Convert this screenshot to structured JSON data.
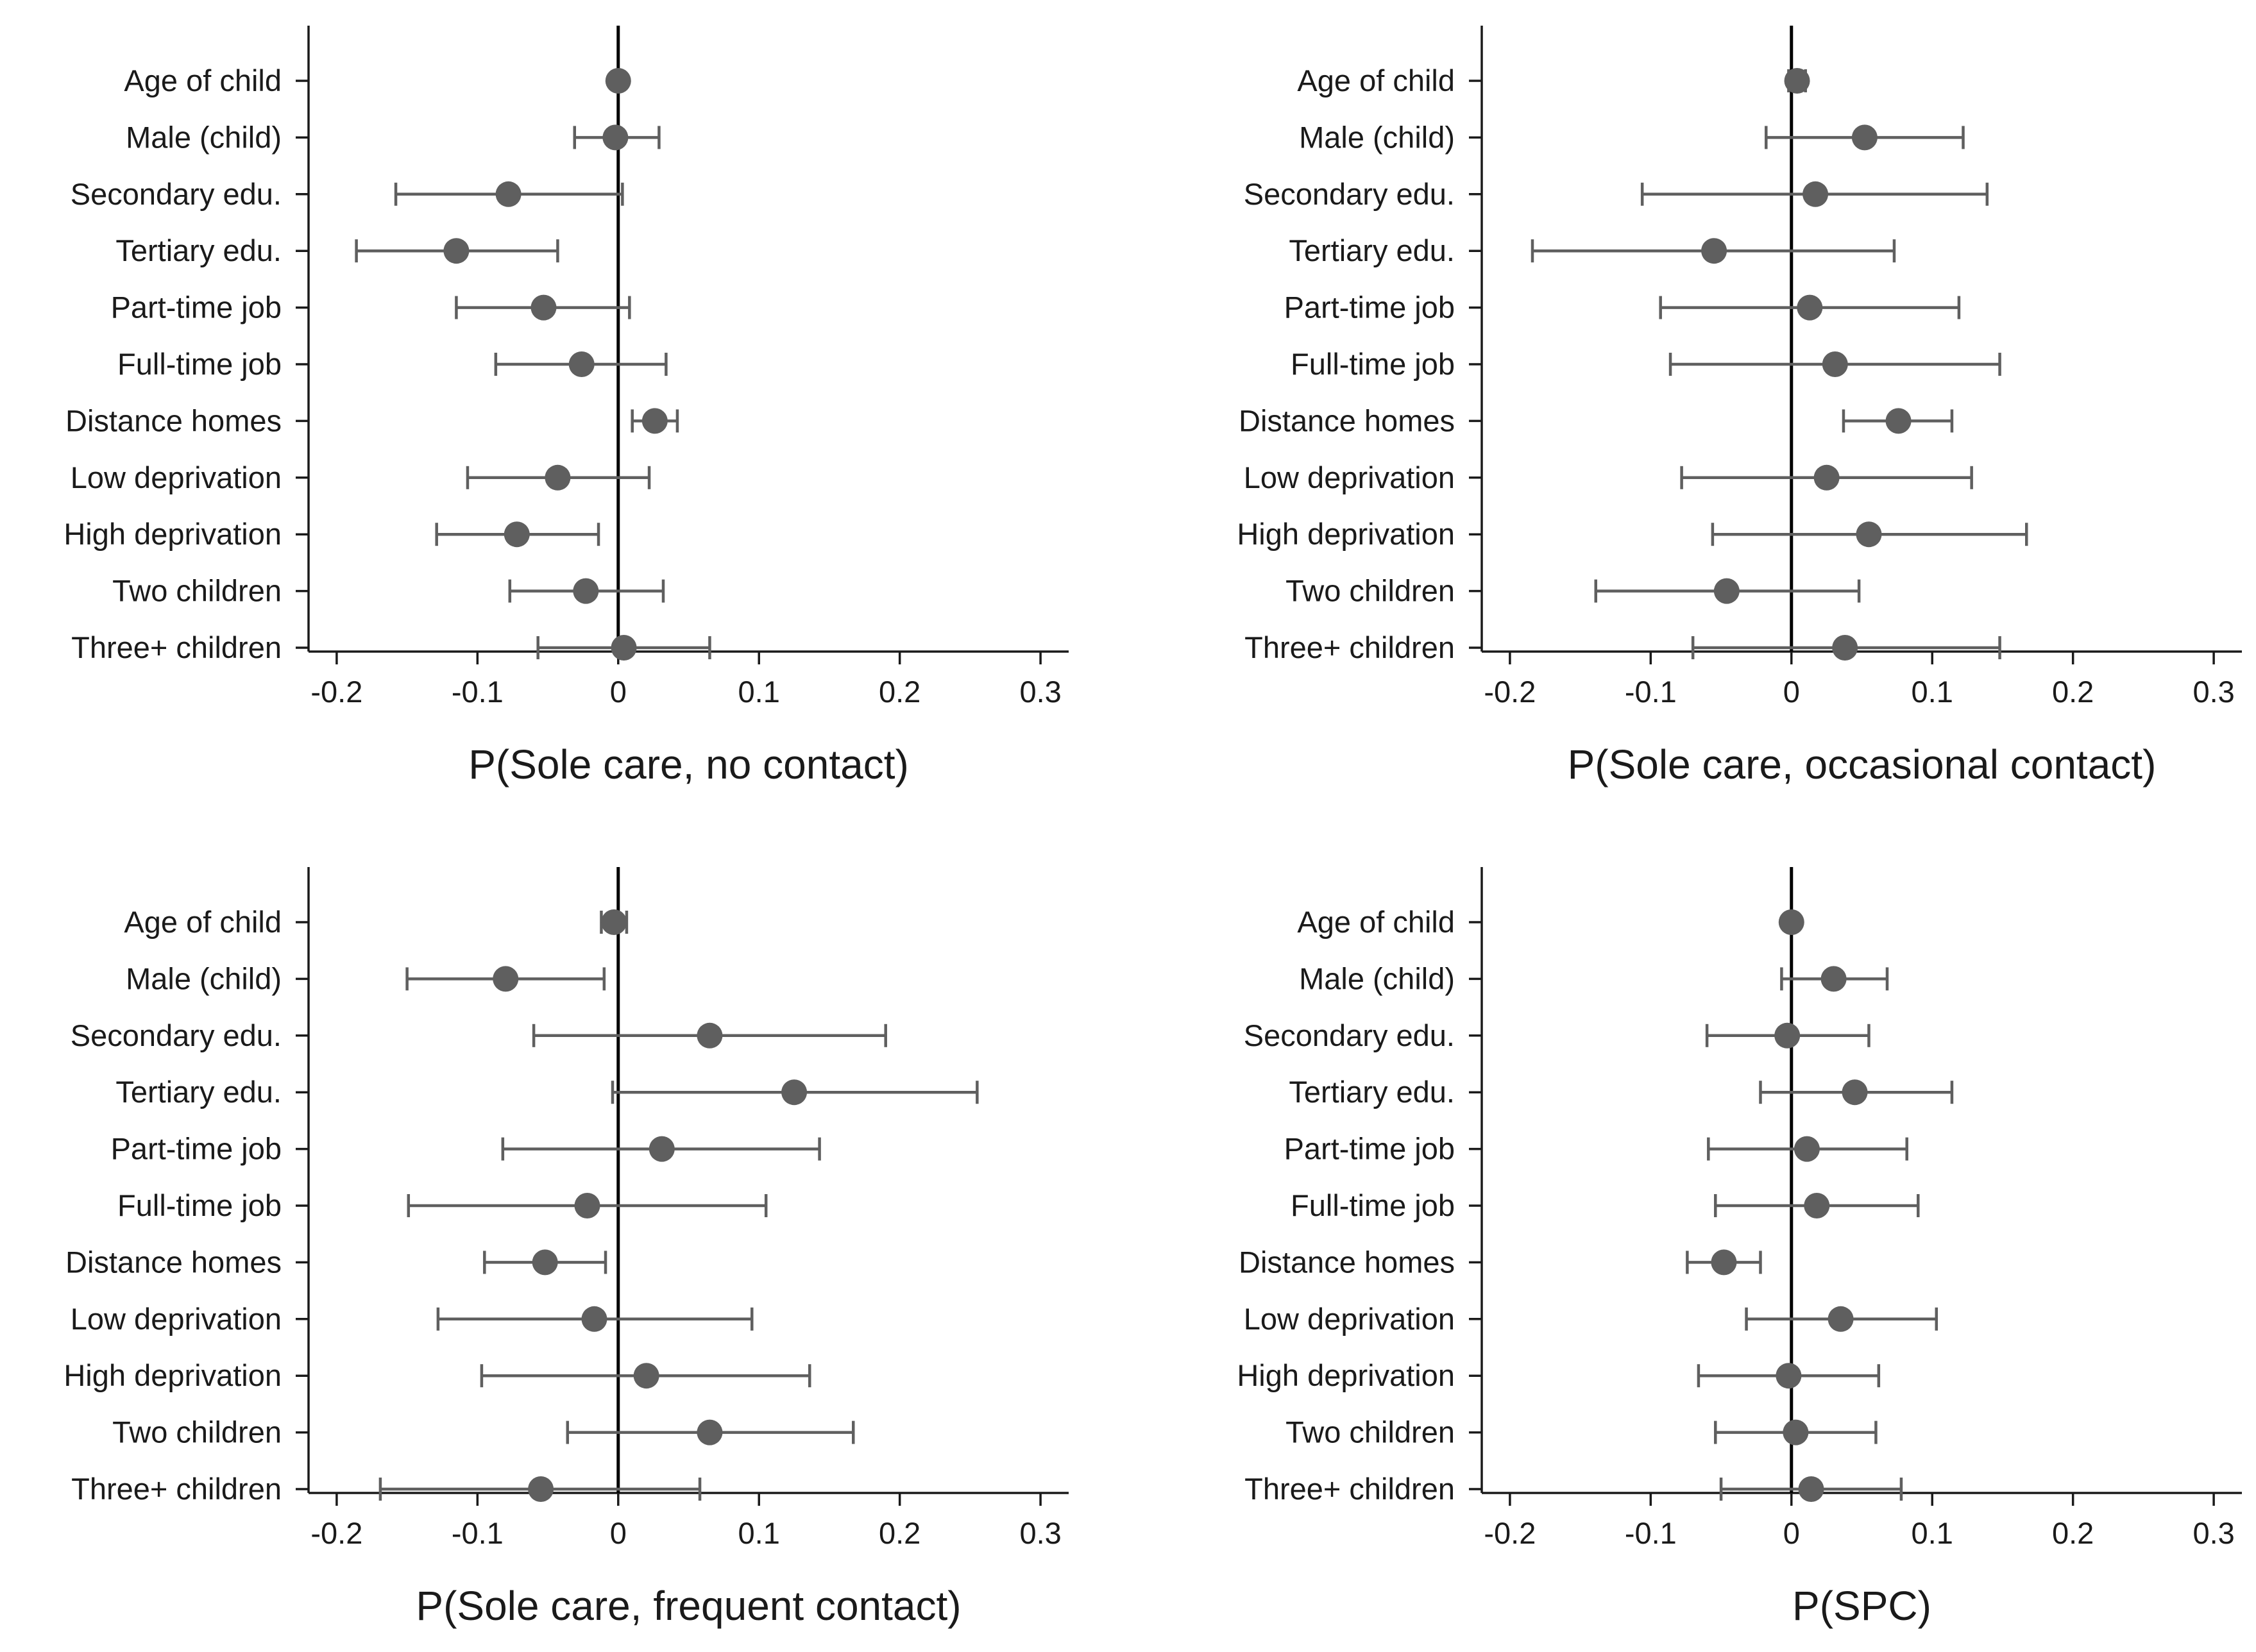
{
  "chart_data": [
    {
      "type": "coefficient-plot",
      "xlabel": "P(Sole care, no contact)",
      "xlim": [
        -0.22,
        0.32
      ],
      "xticks": [
        -0.2,
        -0.1,
        0,
        0.1,
        0.2,
        0.3
      ],
      "xtick_labels": [
        "-0.2",
        "-0.1",
        "0",
        "0.1",
        "0.2",
        "0.3"
      ],
      "reference_line": 0,
      "categories": [
        "Age of child",
        "Male (child)",
        "Secondary edu.",
        "Tertiary edu.",
        "Part-time job",
        "Full-time job",
        "Distance homes",
        "Low deprivation",
        "High deprivation",
        "Two children",
        "Three+ children"
      ],
      "estimates": [
        0.0,
        -0.002,
        -0.078,
        -0.115,
        -0.053,
        -0.026,
        0.026,
        -0.043,
        -0.072,
        -0.023,
        0.004
      ],
      "ci_low": [
        -0.002,
        -0.031,
        -0.158,
        -0.186,
        -0.115,
        -0.087,
        0.01,
        -0.107,
        -0.129,
        -0.077,
        -0.057
      ],
      "ci_high": [
        0.002,
        0.029,
        0.003,
        -0.043,
        0.008,
        0.034,
        0.042,
        0.022,
        -0.014,
        0.032,
        0.065
      ]
    },
    {
      "type": "coefficient-plot",
      "xlabel": "P(Sole care, occasional contact)",
      "xlim": [
        -0.22,
        0.32
      ],
      "xticks": [
        -0.2,
        -0.1,
        0,
        0.1,
        0.2,
        0.3
      ],
      "xtick_labels": [
        "-0.2",
        "-0.1",
        "0",
        "0.1",
        "0.2",
        "0.3"
      ],
      "reference_line": 0,
      "categories": [
        "Age of child",
        "Male (child)",
        "Secondary edu.",
        "Tertiary edu.",
        "Part-time job",
        "Full-time job",
        "Distance homes",
        "Low deprivation",
        "High deprivation",
        "Two children",
        "Three+ children"
      ],
      "estimates": [
        0.004,
        0.052,
        0.017,
        -0.055,
        0.013,
        0.031,
        0.076,
        0.025,
        0.055,
        -0.046,
        0.038
      ],
      "ci_low": [
        -0.002,
        -0.018,
        -0.106,
        -0.184,
        -0.093,
        -0.086,
        0.037,
        -0.078,
        -0.056,
        -0.139,
        -0.07
      ],
      "ci_high": [
        0.01,
        0.122,
        0.139,
        0.073,
        0.119,
        0.148,
        0.114,
        0.128,
        0.167,
        0.048,
        0.148
      ]
    },
    {
      "type": "coefficient-plot",
      "xlabel": "P(Sole care, frequent contact)",
      "xlim": [
        -0.22,
        0.32
      ],
      "xticks": [
        -0.2,
        -0.1,
        0,
        0.1,
        0.2,
        0.3
      ],
      "xtick_labels": [
        "-0.2",
        "-0.1",
        "0",
        "0.1",
        "0.2",
        "0.3"
      ],
      "reference_line": 0,
      "categories": [
        "Age of child",
        "Male (child)",
        "Secondary edu.",
        "Tertiary edu.",
        "Part-time job",
        "Full-time job",
        "Distance homes",
        "Low deprivation",
        "High deprivation",
        "Two children",
        "Three+ children"
      ],
      "estimates": [
        -0.003,
        -0.08,
        0.065,
        0.125,
        0.031,
        -0.022,
        -0.052,
        -0.017,
        0.02,
        0.065,
        -0.055
      ],
      "ci_low": [
        -0.012,
        -0.15,
        -0.06,
        -0.004,
        -0.082,
        -0.149,
        -0.095,
        -0.128,
        -0.097,
        -0.036,
        -0.169
      ],
      "ci_high": [
        0.006,
        -0.01,
        0.19,
        0.255,
        0.143,
        0.105,
        -0.009,
        0.095,
        0.136,
        0.167,
        0.058
      ]
    },
    {
      "type": "coefficient-plot",
      "xlabel": "P(SPC)",
      "xlim": [
        -0.22,
        0.32
      ],
      "xticks": [
        -0.2,
        -0.1,
        0,
        0.1,
        0.2,
        0.3
      ],
      "xtick_labels": [
        "-0.2",
        "-0.1",
        "0",
        "0.1",
        "0.2",
        "0.3"
      ],
      "reference_line": 0,
      "categories": [
        "Age of child",
        "Male (child)",
        "Secondary edu.",
        "Tertiary edu.",
        "Part-time job",
        "Full-time job",
        "Distance homes",
        "Low deprivation",
        "High deprivation",
        "Two children",
        "Three+ children"
      ],
      "estimates": [
        0.0,
        0.03,
        -0.003,
        0.045,
        0.011,
        0.018,
        -0.048,
        0.035,
        -0.002,
        0.003,
        0.014
      ],
      "ci_low": [
        -0.001,
        -0.007,
        -0.06,
        -0.022,
        -0.059,
        -0.054,
        -0.074,
        -0.032,
        -0.066,
        -0.054,
        -0.05
      ],
      "ci_high": [
        0.001,
        0.068,
        0.055,
        0.114,
        0.082,
        0.09,
        -0.022,
        0.103,
        0.062,
        0.06,
        0.078
      ]
    }
  ],
  "colors": {
    "marker": "#5f5f5f",
    "ci": "#5f5f5f",
    "axis": "#1a1a1a",
    "reference_line": "#000000",
    "background": "#ffffff"
  }
}
